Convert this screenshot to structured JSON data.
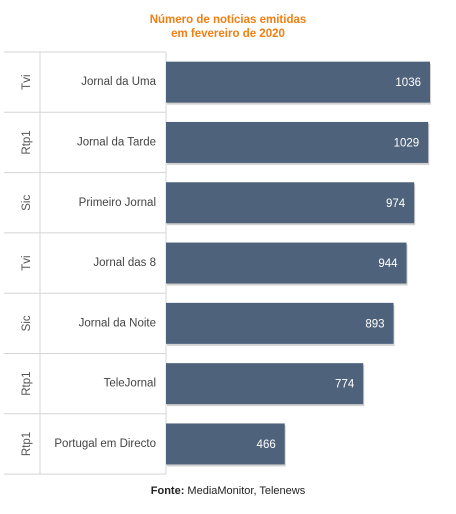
{
  "chart_data": {
    "type": "bar",
    "orientation": "horizontal",
    "title_lines": [
      "Número de notícias emitidas",
      "em fevereiro de 2020"
    ],
    "categories": [
      {
        "group": "Tvi",
        "label": "Jornal da Uma"
      },
      {
        "group": "Rtp1",
        "label": "Jornal da Tarde"
      },
      {
        "group": "Sic",
        "label": "Primeiro Jornal"
      },
      {
        "group": "Tvi",
        "label": "Jornal das 8"
      },
      {
        "group": "Sic",
        "label": "Jornal da Noite"
      },
      {
        "group": "Rtp1",
        "label": "TeleJornal"
      },
      {
        "group": "Rtp1",
        "label": "Portugal em Directo"
      }
    ],
    "values": [
      1036,
      1029,
      974,
      944,
      893,
      774,
      466
    ],
    "value_labels": [
      "1036",
      "1029",
      "974",
      "944",
      "893",
      "774",
      "466"
    ],
    "xlim": [
      0,
      1036
    ],
    "grid": false,
    "legend": "none",
    "bar_color": "#4f627b",
    "title_color": "#f07f13"
  },
  "source": {
    "prefix": "Fonte:",
    "text": " MediaMonitor, Telenews"
  }
}
